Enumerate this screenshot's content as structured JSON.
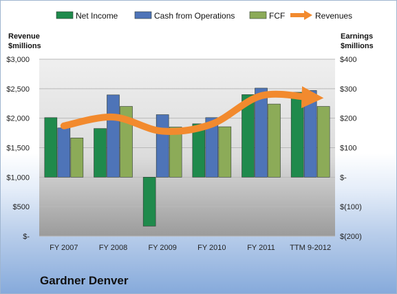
{
  "chart_data": {
    "type": "bar",
    "categories": [
      "FY 2007",
      "FY 2008",
      "FY 2009",
      "FY 2010",
      "FY 2011",
      "TTM 9-2012"
    ],
    "series": [
      {
        "name": "Net Income",
        "axis": "right",
        "color": "#1f8a4c",
        "values": [
          202,
          165,
          -166,
          181,
          280,
          288
        ]
      },
      {
        "name": "Cash from Operations",
        "axis": "right",
        "color": "#4e74b8",
        "values": [
          167,
          279,
          212,
          202,
          302,
          294
        ]
      },
      {
        "name": "FCF",
        "axis": "right",
        "color": "#8cab58",
        "values": [
          133,
          240,
          170,
          171,
          248,
          240
        ]
      },
      {
        "name": "Revenues",
        "axis": "left",
        "type": "line",
        "color": "#f28a2e",
        "values": [
          1870,
          2020,
          1780,
          1900,
          2380,
          2350
        ]
      }
    ],
    "left_axis": {
      "title_line1": "Revenue",
      "title_line2": "$millions",
      "ylim": [
        0,
        3000
      ],
      "ticks": [
        0,
        500,
        1000,
        1500,
        2000,
        2500,
        3000
      ],
      "tick_labels": [
        "$-",
        "$500",
        "$1,000",
        "$1,500",
        "$2,000",
        "$2,500",
        "$3,000"
      ]
    },
    "right_axis": {
      "title_line1": "Earnings",
      "title_line2": "$millions",
      "ylim": [
        -200,
        400
      ],
      "ticks": [
        -200,
        -100,
        0,
        100,
        200,
        300,
        400
      ],
      "tick_labels": [
        "$(200)",
        "$(100)",
        "$-",
        "$100",
        "$200",
        "$300",
        "$400"
      ]
    },
    "legend": [
      "Net Income",
      "Cash from Operations",
      "FCF",
      "Revenues"
    ],
    "legend_position": "top",
    "gridlines": true
  },
  "company_name": "Gardner Denver"
}
